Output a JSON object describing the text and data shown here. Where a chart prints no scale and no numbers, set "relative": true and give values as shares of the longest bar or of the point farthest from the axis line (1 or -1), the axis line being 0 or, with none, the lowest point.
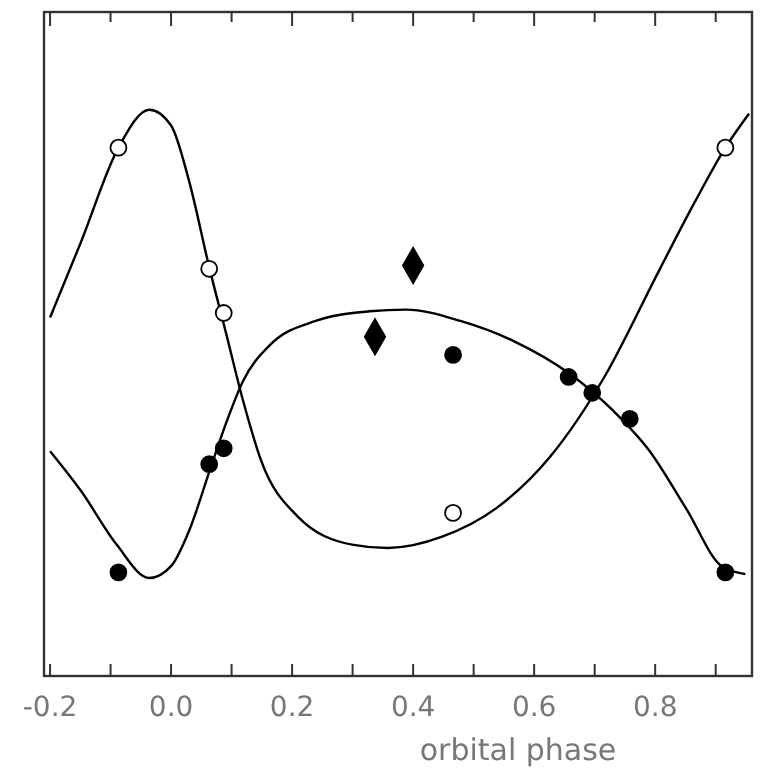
{
  "chart_data": {
    "type": "scatter",
    "xlabel": "orbital phase",
    "relative": true,
    "xlim": [
      -0.21,
      0.96
    ],
    "xticks": [
      -0.2,
      {
        "value": -0.1,
        "label": null
      },
      {
        "value": 0,
        "label": "0.0"
      },
      {
        "value": 0.1,
        "label": null
      },
      0.2,
      {
        "value": 0.3,
        "label": null
      },
      0.4,
      {
        "value": 0.5,
        "label": null
      },
      0.6,
      {
        "value": 0.7,
        "label": null
      },
      0.8,
      {
        "value": 0.9,
        "label": null
      }
    ],
    "series": [
      {
        "type": "line",
        "color": "#000000",
        "marker": "none",
        "x": [
          -0.2,
          -0.149,
          -0.087,
          -0.036,
          0,
          0.03,
          0.063,
          0.09,
          0.119,
          0.149,
          0.209,
          0.299,
          0.358,
          0.448,
          0.537,
          0.627,
          0.716,
          0.806,
          0.866,
          0.916,
          0.955
        ],
        "values": [
          0.633,
          0.766,
          0.933,
          1.0,
          0.972,
          0.873,
          0.722,
          0.609,
          0.486,
          0.38,
          0.282,
          0.232,
          0.226,
          0.246,
          0.296,
          0.388,
          0.528,
          0.715,
          0.838,
          0.933,
          0.993
        ]
      },
      {
        "type": "line",
        "color": "#000000",
        "marker": "none",
        "x": [
          -0.2,
          -0.149,
          -0.09,
          -0.036,
          0,
          0.03,
          0.063,
          0.09,
          0.119,
          0.164,
          0.239,
          0.328,
          0.388,
          0.478,
          0.567,
          0.657,
          0.731,
          0.791,
          0.851,
          0.91,
          0.949
        ],
        "values": [
          0.397,
          0.327,
          0.232,
          0.173,
          0.194,
          0.257,
          0.36,
          0.444,
          0.521,
          0.585,
          0.627,
          0.644,
          0.647,
          0.627,
          0.591,
          0.535,
          0.468,
          0.397,
          0.296,
          0.194,
          0.18
        ]
      },
      {
        "color": "#ffffff",
        "marker": "circle",
        "x": [
          -0.087,
          0.063,
          0.087,
          0.466,
          0.916
        ],
        "values": [
          0.933,
          0.719,
          0.641,
          0.288,
          0.933
        ]
      },
      {
        "color": "#000000",
        "marker": "circle",
        "x": [
          -0.087,
          0.063,
          0.087,
          0.466,
          0.657,
          0.696,
          0.758,
          0.916
        ],
        "values": [
          0.183,
          0.374,
          0.402,
          0.567,
          0.528,
          0.5,
          0.454,
          0.183
        ]
      },
      {
        "color": "#000000",
        "marker": "diamond",
        "x": [
          0.337,
          0.4
        ],
        "values": [
          0.599,
          0.725
        ]
      }
    ]
  }
}
